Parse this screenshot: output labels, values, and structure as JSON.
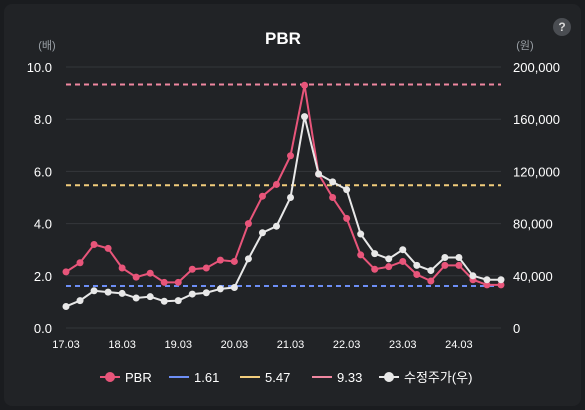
{
  "chart_data": {
    "type": "line",
    "title": "PBR",
    "y_left_unit": "(배)",
    "y_right_unit": "(원)",
    "y_left_ticks": [
      "0.0",
      "2.0",
      "4.0",
      "6.0",
      "8.0",
      "10.0"
    ],
    "y_right_ticks": [
      "0",
      "40,000",
      "80,000",
      "120,000",
      "160,000",
      "200,000"
    ],
    "y_left_lim": [
      0,
      10
    ],
    "y_right_lim": [
      0,
      200000
    ],
    "x_ticks": [
      "17.03",
      "18.03",
      "19.03",
      "20.03",
      "21.03",
      "22.03",
      "23.03",
      "24.03"
    ],
    "x_lim": [
      2017.25,
      2025.0
    ],
    "grid": "horizontal",
    "legend_position": "bottom",
    "x": [
      2017.25,
      2017.5,
      2017.75,
      2018.0,
      2018.25,
      2018.5,
      2018.75,
      2019.0,
      2019.25,
      2019.5,
      2019.75,
      2020.0,
      2020.25,
      2020.5,
      2020.75,
      2021.0,
      2021.25,
      2021.5,
      2021.75,
      2022.0,
      2022.25,
      2022.5,
      2022.75,
      2023.0,
      2023.25,
      2023.5,
      2023.75,
      2024.0,
      2024.25,
      2024.5,
      2024.75,
      2025.0
    ],
    "series": [
      {
        "name": "PBR",
        "axis": "left",
        "color": "#e8557a",
        "values": [
          2.15,
          2.5,
          3.2,
          3.05,
          2.3,
          1.95,
          2.1,
          1.75,
          1.75,
          2.25,
          2.3,
          2.6,
          2.55,
          4.0,
          5.05,
          5.5,
          6.6,
          9.3,
          5.9,
          5.0,
          4.2,
          2.8,
          2.25,
          2.35,
          2.55,
          2.05,
          1.8,
          2.4,
          2.4,
          1.85,
          1.65,
          1.65
        ]
      },
      {
        "name": "수정주가(우)",
        "axis": "right",
        "color": "#e8e8e8",
        "values": [
          16500,
          21000,
          28500,
          27500,
          26500,
          23000,
          24000,
          20500,
          21000,
          26000,
          27000,
          30000,
          31000,
          53000,
          73000,
          78000,
          100000,
          162000,
          118000,
          112000,
          106000,
          72000,
          57000,
          53000,
          60000,
          48000,
          44000,
          54000,
          54000,
          40000,
          37000,
          37000
        ]
      }
    ],
    "reference_lines": [
      {
        "name": "1.61",
        "value": 1.61,
        "color": "#6d8ef5"
      },
      {
        "name": "5.47",
        "value": 5.47,
        "color": "#f2cd7c"
      },
      {
        "name": "9.33",
        "value": 9.33,
        "color": "#ef87a0"
      }
    ]
  }
}
